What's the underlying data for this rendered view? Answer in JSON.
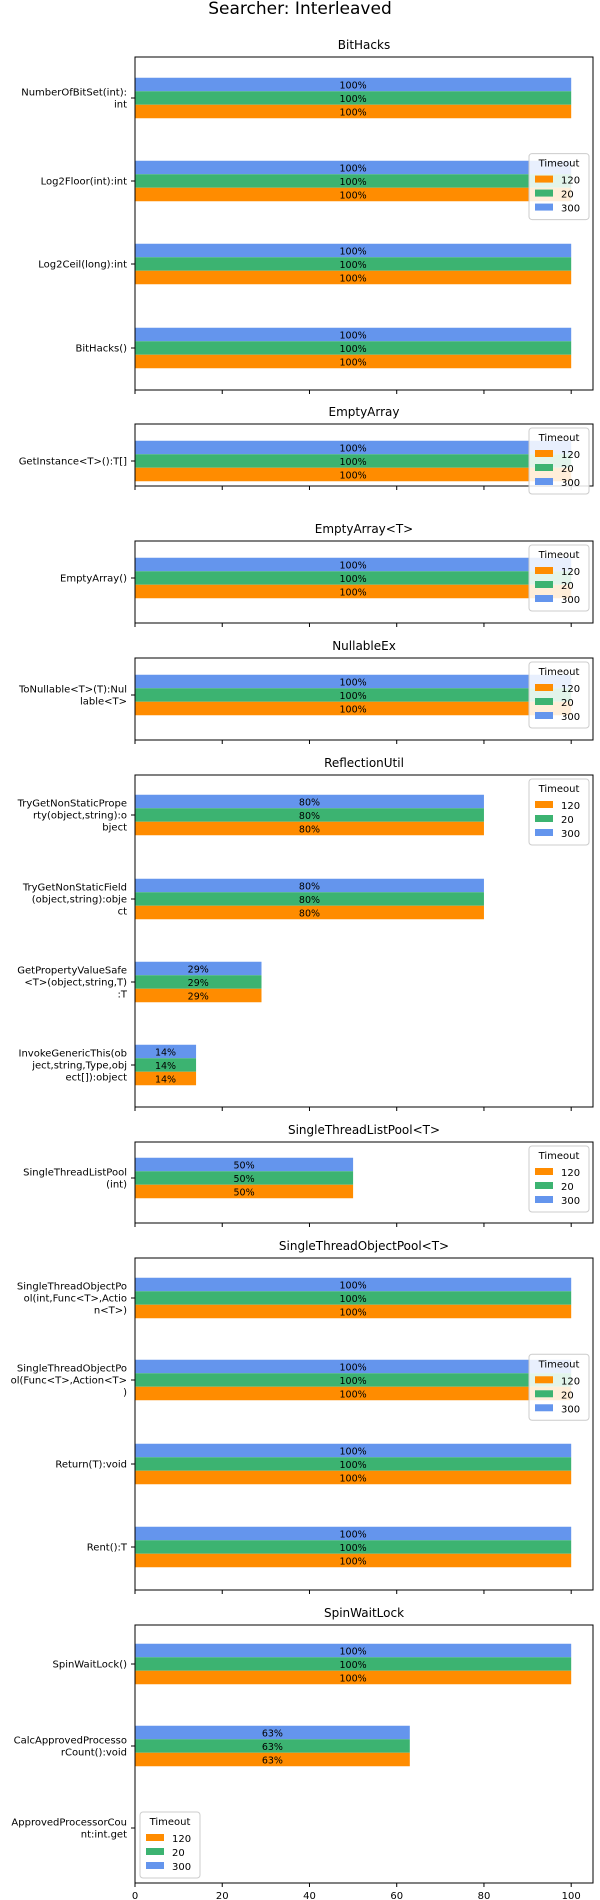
{
  "chart_data": {
    "type": "bar",
    "orientation": "horizontal",
    "title": "Searcher: Interleaved",
    "xlim": [
      0,
      105
    ],
    "xticks": [
      0,
      20,
      40,
      60,
      80,
      100
    ],
    "colors": {
      "120": "#ff8c00",
      "20": "#3cb371",
      "300": "#6495ed"
    },
    "legend_title": "Timeout",
    "legend_entries": [
      "120",
      "20",
      "300"
    ],
    "panels": [
      {
        "title": "BitHacks",
        "legend_position": "center-right",
        "categories": [
          [
            "NumberOfBitSet(int):",
            "int"
          ],
          [
            "Log2Floor(int):int"
          ],
          [
            "Log2Ceil(long):int"
          ],
          [
            "BitHacks()"
          ]
        ],
        "series": [
          {
            "name": "120",
            "values": [
              100,
              100,
              100,
              100
            ],
            "labels": [
              "100%",
              "100%",
              "100%",
              "100%"
            ]
          },
          {
            "name": "20",
            "values": [
              100,
              100,
              100,
              100
            ],
            "labels": [
              "100%",
              "100%",
              "100%",
              "100%"
            ]
          },
          {
            "name": "300",
            "values": [
              100,
              100,
              100,
              100
            ],
            "labels": [
              "100%",
              "100%",
              "100%",
              "100%"
            ]
          }
        ]
      },
      {
        "title": "EmptyArray",
        "legend_position": "upper-right",
        "categories": [
          [
            "GetInstance<T>():T[]"
          ]
        ],
        "series": [
          {
            "name": "120",
            "values": [
              100
            ],
            "labels": [
              "100%"
            ]
          },
          {
            "name": "20",
            "values": [
              100
            ],
            "labels": [
              "100%"
            ]
          },
          {
            "name": "300",
            "values": [
              100
            ],
            "labels": [
              "100%"
            ]
          }
        ]
      },
      {
        "title": "EmptyArray<T>",
        "legend_position": "upper-right",
        "categories": [
          [
            "EmptyArray()"
          ]
        ],
        "series": [
          {
            "name": "120",
            "values": [
              100
            ],
            "labels": [
              "100%"
            ]
          },
          {
            "name": "20",
            "values": [
              100
            ],
            "labels": [
              "100%"
            ]
          },
          {
            "name": "300",
            "values": [
              100
            ],
            "labels": [
              "100%"
            ]
          }
        ]
      },
      {
        "title": "NullableEx",
        "legend_position": "upper-right",
        "categories": [
          [
            "ToNullable<T>(T):Nul",
            "lable<T>"
          ]
        ],
        "series": [
          {
            "name": "120",
            "values": [
              100
            ],
            "labels": [
              "100%"
            ]
          },
          {
            "name": "20",
            "values": [
              100
            ],
            "labels": [
              "100%"
            ]
          },
          {
            "name": "300",
            "values": [
              100
            ],
            "labels": [
              "100%"
            ]
          }
        ]
      },
      {
        "title": "ReflectionUtil",
        "legend_position": "upper-right",
        "categories": [
          [
            "TryGetNonStaticPrope",
            "rty(object,string):o",
            "bject"
          ],
          [
            "TryGetNonStaticField",
            "(object,string):obje",
            "ct"
          ],
          [
            "GetPropertyValueSafe",
            "<T>(object,string,T)",
            ":T"
          ],
          [
            "InvokeGenericThis(ob",
            "ject,string,Type,obj",
            "ect[]):object"
          ]
        ],
        "series": [
          {
            "name": "120",
            "values": [
              80,
              80,
              29,
              14
            ],
            "labels": [
              "80%",
              "80%",
              "29%",
              "14%"
            ]
          },
          {
            "name": "20",
            "values": [
              80,
              80,
              29,
              14
            ],
            "labels": [
              "80%",
              "80%",
              "29%",
              "14%"
            ]
          },
          {
            "name": "300",
            "values": [
              80,
              80,
              29,
              14
            ],
            "labels": [
              "80%",
              "80%",
              "29%",
              "14%"
            ]
          }
        ]
      },
      {
        "title": "SingleThreadListPool<T>",
        "legend_position": "upper-right",
        "categories": [
          [
            "SingleThreadListPool",
            "(int)"
          ]
        ],
        "series": [
          {
            "name": "120",
            "values": [
              50
            ],
            "labels": [
              "50%"
            ]
          },
          {
            "name": "20",
            "values": [
              50
            ],
            "labels": [
              "50%"
            ]
          },
          {
            "name": "300",
            "values": [
              50
            ],
            "labels": [
              "50%"
            ]
          }
        ]
      },
      {
        "title": "SingleThreadObjectPool<T>",
        "legend_position": "center-right",
        "categories": [
          [
            "SingleThreadObjectPo",
            "ol(int,Func<T>,Actio",
            "n<T>)"
          ],
          [
            "SingleThreadObjectPo",
            "ol(Func<T>,Action<T>",
            ")"
          ],
          [
            "Return(T):void"
          ],
          [
            "Rent():T"
          ]
        ],
        "series": [
          {
            "name": "120",
            "values": [
              100,
              100,
              100,
              100
            ],
            "labels": [
              "100%",
              "100%",
              "100%",
              "100%"
            ]
          },
          {
            "name": "20",
            "values": [
              100,
              100,
              100,
              100
            ],
            "labels": [
              "100%",
              "100%",
              "100%",
              "100%"
            ]
          },
          {
            "name": "300",
            "values": [
              100,
              100,
              100,
              100
            ],
            "labels": [
              "100%",
              "100%",
              "100%",
              "100%"
            ]
          }
        ]
      },
      {
        "title": "SpinWaitLock",
        "legend_position": "lower-left",
        "categories": [
          [
            "SpinWaitLock()"
          ],
          [
            "CalcApprovedProcesso",
            "rCount():void"
          ],
          [
            "ApprovedProcessorCou",
            "nt:int.get"
          ]
        ],
        "series": [
          {
            "name": "120",
            "values": [
              100,
              63,
              null
            ],
            "labels": [
              "100%",
              "63%",
              ""
            ]
          },
          {
            "name": "20",
            "values": [
              100,
              63,
              null
            ],
            "labels": [
              "100%",
              "63%",
              ""
            ]
          },
          {
            "name": "300",
            "values": [
              100,
              63,
              null
            ],
            "labels": [
              "100%",
              "63%",
              ""
            ]
          }
        ]
      }
    ]
  }
}
